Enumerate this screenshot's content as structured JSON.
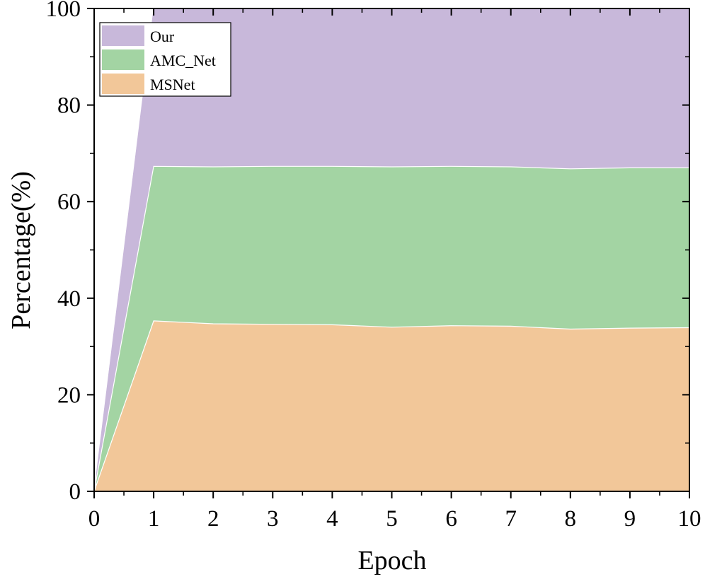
{
  "chart_data": {
    "type": "area",
    "stacked": true,
    "xlabel": "Epoch",
    "ylabel": "Percentage(%)",
    "x": [
      0,
      1,
      2,
      3,
      4,
      5,
      6,
      7,
      8,
      9,
      10
    ],
    "xlim": [
      0,
      10
    ],
    "ylim": [
      0,
      100
    ],
    "xticks": [
      "0",
      "1",
      "2",
      "3",
      "4",
      "5",
      "6",
      "7",
      "8",
      "9",
      "10"
    ],
    "yticks": [
      "0",
      "20",
      "40",
      "60",
      "80",
      "100"
    ],
    "grid": false,
    "legend_position": "top-left",
    "series": [
      {
        "name": "MSNet",
        "color": "#f2c799",
        "values": [
          0,
          35.3,
          34.7,
          34.6,
          34.5,
          34.0,
          34.3,
          34.2,
          33.6,
          33.8,
          33.9
        ]
      },
      {
        "name": "AMC_Net",
        "color": "#a3d4a3",
        "values": [
          0,
          32.0,
          32.5,
          32.7,
          32.8,
          33.2,
          33.0,
          33.0,
          33.2,
          33.2,
          33.1
        ]
      },
      {
        "name": "Our",
        "color": "#c8b8da",
        "values": [
          0,
          32.7,
          32.8,
          32.7,
          32.7,
          32.8,
          32.7,
          32.8,
          33.2,
          33.0,
          33.0
        ]
      }
    ]
  }
}
